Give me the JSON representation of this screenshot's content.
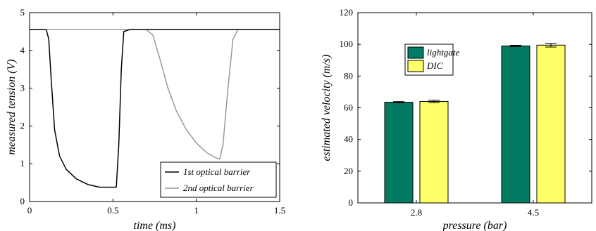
{
  "chart_data": [
    {
      "type": "line",
      "xlabel": "time (ms)",
      "ylabel": "measured tension (V)",
      "xlim": [
        0,
        1.5
      ],
      "ylim": [
        0,
        5
      ],
      "xticks": [
        "0",
        "0.5",
        "1",
        "1.5"
      ],
      "yticks": [
        "0",
        "1",
        "2",
        "3",
        "4",
        "5"
      ],
      "grid": false,
      "legend_position": "bottom-right",
      "colors": {
        "series1": "#000000",
        "series2": "#999999"
      },
      "series": [
        {
          "name": "1st optical barrier",
          "x": [
            0,
            0.1,
            0.115,
            0.13,
            0.15,
            0.18,
            0.22,
            0.28,
            0.35,
            0.42,
            0.48,
            0.52,
            0.535,
            0.55,
            0.565,
            0.6,
            0.8,
            1.0,
            1.2,
            1.4,
            1.5
          ],
          "y": [
            4.55,
            4.55,
            4.3,
            3.2,
            1.9,
            1.2,
            0.85,
            0.6,
            0.45,
            0.38,
            0.38,
            0.38,
            1.5,
            3.5,
            4.5,
            4.55,
            4.55,
            4.55,
            4.55,
            4.55,
            4.55
          ]
        },
        {
          "name": "2nd optical barrier",
          "x": [
            0,
            0.2,
            0.5,
            0.7,
            0.74,
            0.78,
            0.83,
            0.88,
            0.94,
            1.0,
            1.06,
            1.12,
            1.14,
            1.16,
            1.19,
            1.22,
            1.25,
            1.3,
            1.4,
            1.5
          ],
          "y": [
            4.55,
            4.55,
            4.55,
            4.55,
            4.4,
            3.8,
            3.0,
            2.4,
            1.9,
            1.55,
            1.3,
            1.15,
            1.12,
            1.5,
            3.0,
            4.3,
            4.55,
            4.55,
            4.55,
            4.55
          ]
        }
      ]
    },
    {
      "type": "bar",
      "xlabel": "pressure (bar)",
      "ylabel": "estimated velocity (m/s)",
      "categories": [
        "2.8",
        "4.5"
      ],
      "ylim": [
        0,
        120
      ],
      "yticks": [
        "0",
        "20",
        "40",
        "60",
        "80",
        "100",
        "120"
      ],
      "grid": false,
      "legend_position": "top-left",
      "colors": {
        "lightgate": "#037B63",
        "DIC": "#FFFF66"
      },
      "series": [
        {
          "name": "lightgate",
          "values": [
            63.5,
            99.0
          ],
          "errors": [
            0.4,
            0.4
          ]
        },
        {
          "name": "DIC",
          "values": [
            64.0,
            99.5
          ],
          "errors": [
            0.8,
            1.2
          ]
        }
      ]
    }
  ]
}
